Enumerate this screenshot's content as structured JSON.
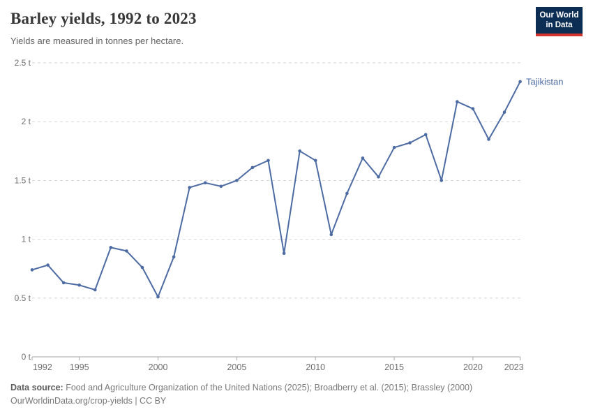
{
  "header": {
    "title": "Barley yields, 1992 to 2023",
    "subtitle": "Yields are measured in tonnes per hectare."
  },
  "logo": {
    "line1": "Our World",
    "line2": "in Data"
  },
  "footer": {
    "source_label": "Data source:",
    "source_text": " Food and Agriculture Organization of the United Nations (2025); Broadberry et al. (2015); Brassley (2000)",
    "license_url": "OurWorldinData.org/crop-yields",
    "license_suffix": " | CC BY"
  },
  "colors": {
    "line": "#4d6ba3",
    "grid": "#d6d6d6",
    "axis": "#a6a6a6",
    "tick_label": "#6e6e6e",
    "title": "#383838",
    "subtitle": "#616161",
    "footer": "#787878",
    "logo_bg": "#0d2e54",
    "logo_red": "#d0342c"
  },
  "chart_data": {
    "type": "line",
    "title": "Barley yields, 1992 to 2023",
    "subtitle": "Yields are measured in tonnes per hectare.",
    "unit": "t",
    "xlabel": "",
    "ylabel": "",
    "grid": "horizontal-dashed",
    "legend_position": "end-of-line-label",
    "ylim": [
      0,
      2.5
    ],
    "ytick_values": [
      0,
      0.5,
      1,
      1.5,
      2,
      2.5
    ],
    "ytick_labels": [
      "0 t",
      "0.5 t",
      "1 t",
      "1.5 t",
      "2 t",
      "2.5 t"
    ],
    "xticks": [
      1992,
      1995,
      2000,
      2005,
      2010,
      2015,
      2020,
      2023
    ],
    "x": [
      1992,
      1993,
      1994,
      1995,
      1996,
      1997,
      1998,
      1999,
      2000,
      2001,
      2002,
      2003,
      2004,
      2005,
      2006,
      2007,
      2008,
      2009,
      2010,
      2011,
      2012,
      2013,
      2014,
      2015,
      2016,
      2017,
      2018,
      2019,
      2020,
      2021,
      2022,
      2023
    ],
    "series": [
      {
        "name": "Tajikistan",
        "values": [
          0.74,
          0.78,
          0.63,
          0.61,
          0.57,
          0.93,
          0.9,
          0.76,
          0.51,
          0.85,
          1.44,
          1.48,
          1.45,
          1.5,
          1.61,
          1.67,
          0.88,
          1.75,
          1.67,
          1.04,
          1.39,
          1.69,
          1.53,
          1.78,
          1.82,
          1.89,
          1.5,
          2.17,
          2.11,
          1.85,
          2.08,
          2.34
        ]
      }
    ]
  }
}
